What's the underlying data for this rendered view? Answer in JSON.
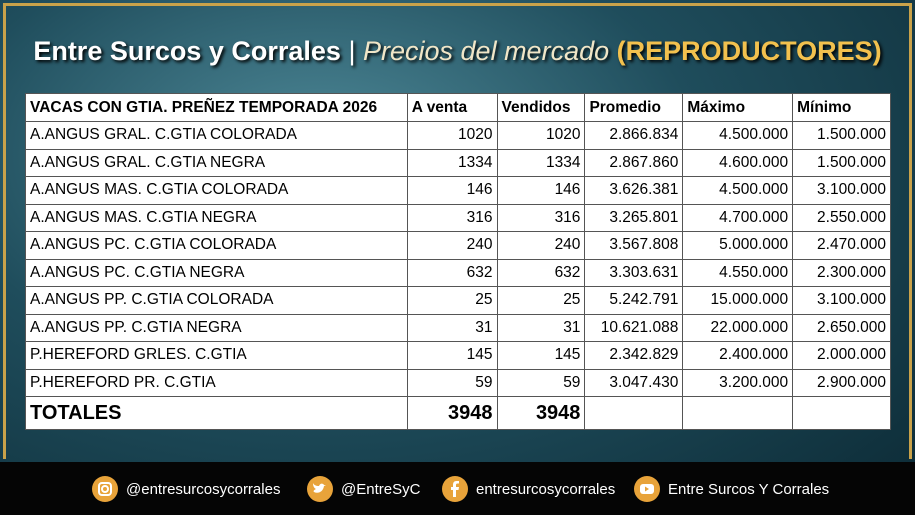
{
  "header": {
    "title": "Entre Surcos y Corrales",
    "separator": "|",
    "subtitle": "Precios del mercado",
    "tag": "(REPRODUCTORES)"
  },
  "table": {
    "columns": [
      "VACAS CON GTIA. PREÑEZ TEMPORADA 2026",
      "A venta",
      "Vendidos",
      "Promedio",
      "Máximo",
      "Mínimo"
    ],
    "rows": [
      [
        "A.ANGUS GRAL. C.GTIA COLORADA",
        "1020",
        "1020",
        "2.866.834",
        "4.500.000",
        "1.500.000"
      ],
      [
        "A.ANGUS GRAL. C.GTIA NEGRA",
        "1334",
        "1334",
        "2.867.860",
        "4.600.000",
        "1.500.000"
      ],
      [
        "A.ANGUS MAS. C.GTIA COLORADA",
        "146",
        "146",
        "3.626.381",
        "4.500.000",
        "3.100.000"
      ],
      [
        "A.ANGUS MAS. C.GTIA NEGRA",
        "316",
        "316",
        "3.265.801",
        "4.700.000",
        "2.550.000"
      ],
      [
        "A.ANGUS PC. C.GTIA COLORADA",
        "240",
        "240",
        "3.567.808",
        "5.000.000",
        "2.470.000"
      ],
      [
        "A.ANGUS PC. C.GTIA NEGRA",
        "632",
        "632",
        "3.303.631",
        "4.550.000",
        "2.300.000"
      ],
      [
        "A.ANGUS PP. C.GTIA COLORADA",
        "25",
        "25",
        "5.242.791",
        "15.000.000",
        "3.100.000"
      ],
      [
        "A.ANGUS PP. C.GTIA NEGRA",
        "31",
        "31",
        "10.621.088",
        "22.000.000",
        "2.650.000"
      ],
      [
        "P.HEREFORD GRLES. C.GTIA",
        "145",
        "145",
        "2.342.829",
        "2.400.000",
        "2.000.000"
      ],
      [
        "P.HEREFORD PR. C.GTIA",
        "59",
        "59",
        "3.047.430",
        "3.200.000",
        "2.900.000"
      ]
    ],
    "totals": [
      "TOTALES",
      "3948",
      "3948"
    ]
  },
  "footer": {
    "instagram": "@entresurcosycorrales",
    "twitter": "@EntreSyC",
    "facebook": "entresurcosycorrales",
    "youtube": "Entre Surcos Y Corrales"
  }
}
